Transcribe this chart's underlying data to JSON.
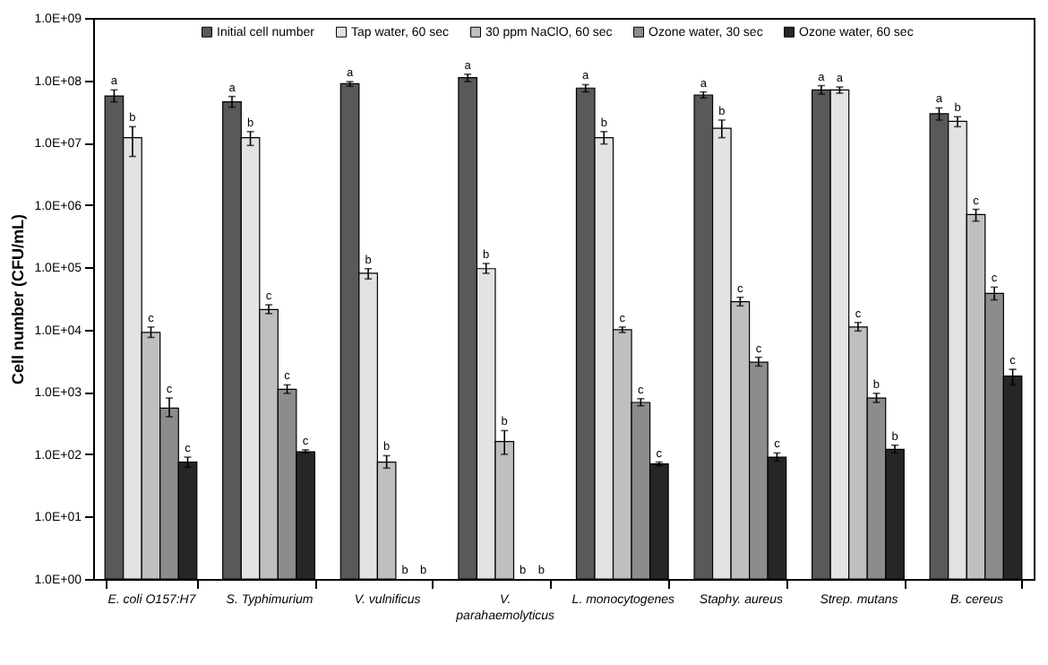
{
  "chart_data": {
    "type": "bar",
    "ylabel": "Cell number (CFU/mL)",
    "log": "y",
    "ylim": [
      1,
      1000000000
    ],
    "yticks": [
      {
        "value": 1,
        "label": "1.0E+00"
      },
      {
        "value": 10,
        "label": "1.0E+01"
      },
      {
        "value": 100,
        "label": "1.0E+02"
      },
      {
        "value": 1000,
        "label": "1.0E+03"
      },
      {
        "value": 10000,
        "label": "1.0E+04"
      },
      {
        "value": 100000,
        "label": "1.0E+05"
      },
      {
        "value": 1000000,
        "label": "1.0E+06"
      },
      {
        "value": 10000000,
        "label": "1.0E+07"
      },
      {
        "value": 100000000,
        "label": "1.0E+08"
      },
      {
        "value": 1000000000,
        "label": "1.0E+09"
      }
    ],
    "categories": [
      "E. coli O157:H7",
      "S. Typhimurium",
      "V. vulnificus",
      "V. parahaemolyticus",
      "L. monocytogenes",
      "Staphy. aureus",
      "Strep. mutans",
      "B. cereus"
    ],
    "legend": "top",
    "grid": false,
    "series": [
      {
        "name": "Initial cell number",
        "color": "#595959",
        "values": [
          56000000,
          45000000,
          88000000,
          110000000,
          75000000,
          58000000,
          70000000,
          29000000
        ],
        "errors": [
          [
            45000000,
            70000000
          ],
          [
            37000000,
            55000000
          ],
          [
            80000000,
            95000000
          ],
          [
            95000000,
            125000000
          ],
          [
            65000000,
            85000000
          ],
          [
            52000000,
            65000000
          ],
          [
            60000000,
            82000000
          ],
          [
            23000000,
            36000000
          ]
        ],
        "value_labels": [
          "a",
          "a",
          "a",
          "a",
          "a",
          "a",
          "a",
          "a"
        ]
      },
      {
        "name": "Tap water, 60 sec",
        "color": "#e3e3e3",
        "values": [
          12000000,
          12000000,
          80000,
          95000,
          12000000,
          17000000,
          70000000,
          22000000
        ],
        "errors": [
          [
            6000000,
            18000000
          ],
          [
            9000000,
            15000000
          ],
          [
            65000,
            95000
          ],
          [
            80000,
            115000
          ],
          [
            9500000,
            15000000
          ],
          [
            12000000,
            23000000
          ],
          [
            62000000,
            78000000
          ],
          [
            18000000,
            26000000
          ]
        ],
        "value_labels": [
          "b",
          "b",
          "b",
          "b",
          "b",
          "b",
          "a",
          "b"
        ]
      },
      {
        "name": "30 ppm NaClO, 60 sec",
        "color": "#bfbfbf",
        "values": [
          9000,
          21000,
          75,
          160,
          10000,
          28000,
          11000,
          700000
        ],
        "errors": [
          [
            7500,
            11000
          ],
          [
            18000,
            25000
          ],
          [
            60,
            95
          ],
          [
            100,
            240
          ],
          [
            9000,
            11000
          ],
          [
            24000,
            33000
          ],
          [
            9500,
            13000
          ],
          [
            550000,
            850000
          ]
        ],
        "value_labels": [
          "c",
          "c",
          "b",
          "b",
          "c",
          "c",
          "c",
          "c"
        ]
      },
      {
        "name": "Ozone water, 30 sec",
        "color": "#8c8c8c",
        "values": [
          550,
          1100,
          null,
          null,
          680,
          3000,
          800,
          38000
        ],
        "errors": [
          [
            400,
            800
          ],
          [
            950,
            1300
          ],
          null,
          null,
          [
            600,
            780
          ],
          [
            2600,
            3600
          ],
          [
            680,
            950
          ],
          [
            30000,
            48000
          ]
        ],
        "value_labels": [
          "c",
          "c",
          "b",
          "b",
          "c",
          "c",
          "b",
          "c"
        ]
      },
      {
        "name": "Ozone water, 60 sec",
        "color": "#262626",
        "values": [
          75,
          110,
          null,
          null,
          70,
          90,
          120,
          1800
        ],
        "errors": [
          [
            62,
            90
          ],
          [
            105,
            118
          ],
          null,
          null,
          [
            65,
            75
          ],
          [
            78,
            105
          ],
          [
            105,
            140
          ],
          [
            1300,
            2300
          ]
        ],
        "value_labels": [
          "c",
          "c",
          "b",
          "b",
          "c",
          "c",
          "b",
          "c"
        ]
      }
    ]
  }
}
